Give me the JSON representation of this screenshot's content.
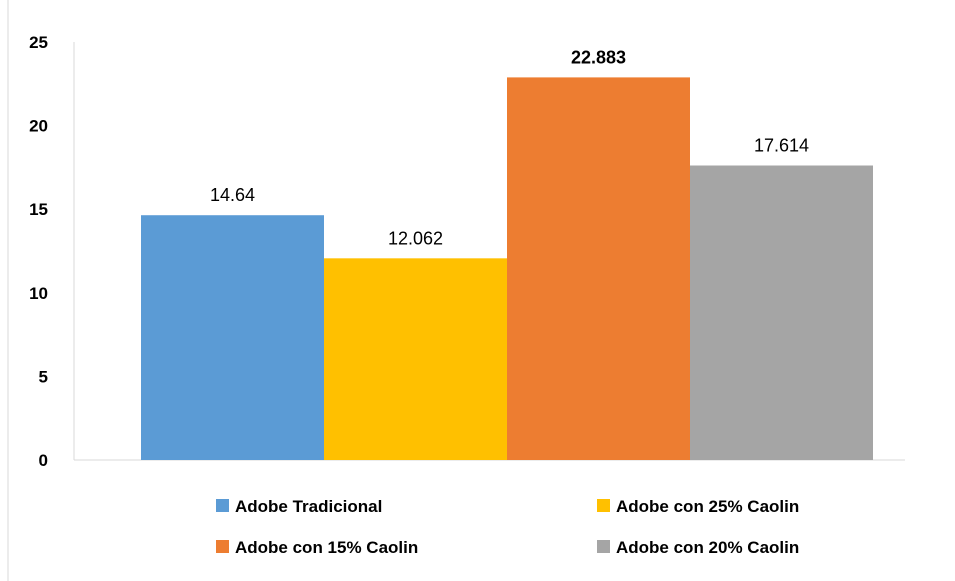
{
  "chart_data": {
    "type": "bar",
    "title": "",
    "xlabel": "",
    "ylabel": "",
    "ylim": [
      0,
      25
    ],
    "yticks": [
      0,
      5,
      10,
      15,
      20,
      25
    ],
    "grid": false,
    "legend_position": "bottom",
    "series": [
      {
        "name": "Adobe Tradicional",
        "value": 14.64,
        "label": "14.64",
        "label_bold": false,
        "color": "#5B9BD5"
      },
      {
        "name": "Adobe con 25% Caolin",
        "value": 12.062,
        "label": "12.062",
        "label_bold": false,
        "color": "#FFC000"
      },
      {
        "name": "Adobe con 15% Caolin",
        "value": 22.883,
        "label": "22.883",
        "label_bold": true,
        "color": "#ED7D31"
      },
      {
        "name": "Adobe con 20% Caolin",
        "value": 17.614,
        "label": "17.614",
        "label_bold": false,
        "color": "#A5A5A5"
      }
    ],
    "legend_order": [
      0,
      1,
      2,
      3
    ]
  }
}
